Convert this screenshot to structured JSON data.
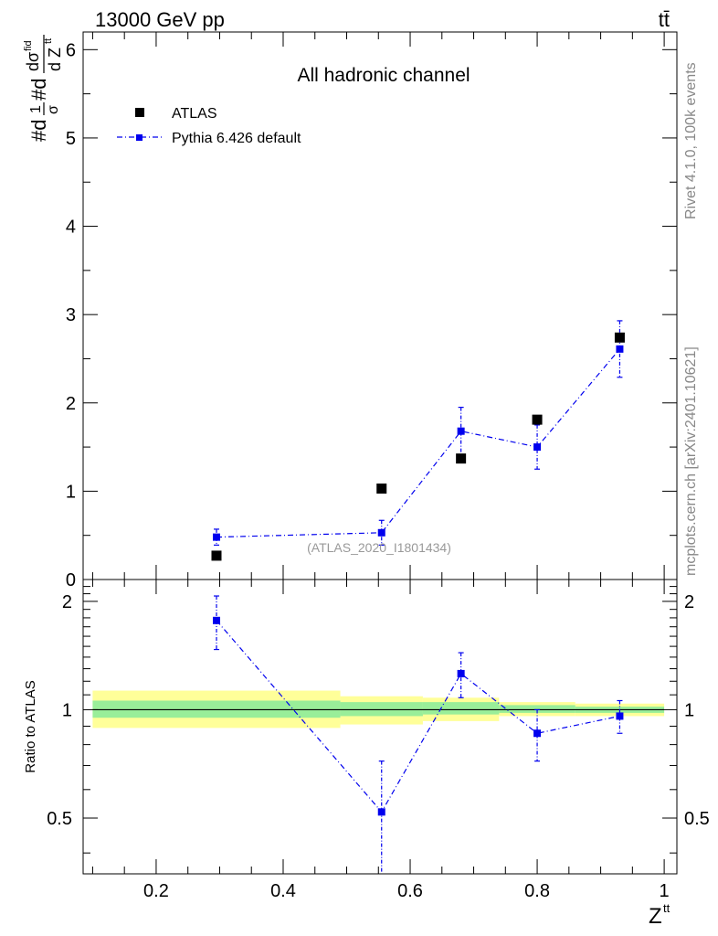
{
  "header": {
    "energy_label": "13000 GeV pp",
    "process_label": "tt̄"
  },
  "side_labels": {
    "rivet": "Rivet 4.1.0,  100k events",
    "source": "mcplots.cern.ch [arXiv:2401.10621]"
  },
  "chart_data": [
    {
      "type": "scatter",
      "panel": "main",
      "title": "All hadronic channel",
      "watermark": "(ATLAS_2020_I1801434)",
      "ylabel": "#d 1/σ #d dσ^fid / d Z^tt",
      "xlim": [
        0.085,
        1.02
      ],
      "ylim": [
        0,
        6.2
      ],
      "y_ticks": [
        0,
        1,
        2,
        3,
        4,
        5,
        6
      ],
      "series": [
        {
          "name": "ATLAS",
          "color": "#000000",
          "marker": "square",
          "x": [
            0.295,
            0.555,
            0.68,
            0.8,
            0.93
          ],
          "y": [
            0.27,
            1.03,
            1.37,
            1.81,
            2.74
          ]
        },
        {
          "name": "Pythia 6.426 default",
          "color": "#0000ee",
          "marker": "square-small",
          "line": "dash-dot",
          "x": [
            0.295,
            0.555,
            0.68,
            0.8,
            0.93
          ],
          "y": [
            0.48,
            0.53,
            1.68,
            1.5,
            2.61
          ],
          "yerr": [
            0.09,
            0.14,
            0.27,
            0.25,
            0.32
          ]
        }
      ]
    },
    {
      "type": "scatter",
      "panel": "ratio",
      "ylabel": "Ratio to ATLAS",
      "xlabel": "Z^tt",
      "xlim": [
        0.085,
        1.02
      ],
      "ylim": [
        0.35,
        2.3
      ],
      "y_ticks": [
        0.5,
        1,
        2
      ],
      "x_ticks": [
        0.2,
        0.4,
        0.6,
        0.8,
        1
      ],
      "reference_line": 1,
      "bands": [
        {
          "x0": 0.1,
          "x1": 0.49,
          "inner": [
            0.95,
            1.06
          ],
          "outer": [
            0.89,
            1.13
          ]
        },
        {
          "x0": 0.49,
          "x1": 0.62,
          "inner": [
            0.96,
            1.05
          ],
          "outer": [
            0.91,
            1.09
          ]
        },
        {
          "x0": 0.62,
          "x1": 0.74,
          "inner": [
            0.97,
            1.05
          ],
          "outer": [
            0.93,
            1.08
          ]
        },
        {
          "x0": 0.74,
          "x1": 0.86,
          "inner": [
            0.98,
            1.03
          ],
          "outer": [
            0.96,
            1.05
          ]
        },
        {
          "x0": 0.86,
          "x1": 1.0,
          "inner": [
            0.98,
            1.02
          ],
          "outer": [
            0.96,
            1.04
          ]
        }
      ],
      "series": [
        {
          "name": "Pythia 6.426 default",
          "color": "#0000ee",
          "x": [
            0.295,
            0.555,
            0.68,
            0.8,
            0.93
          ],
          "y": [
            1.77,
            0.52,
            1.26,
            0.86,
            0.96
          ],
          "yerr": [
            0.3,
            0.2,
            0.18,
            0.14,
            0.1
          ]
        }
      ]
    }
  ]
}
